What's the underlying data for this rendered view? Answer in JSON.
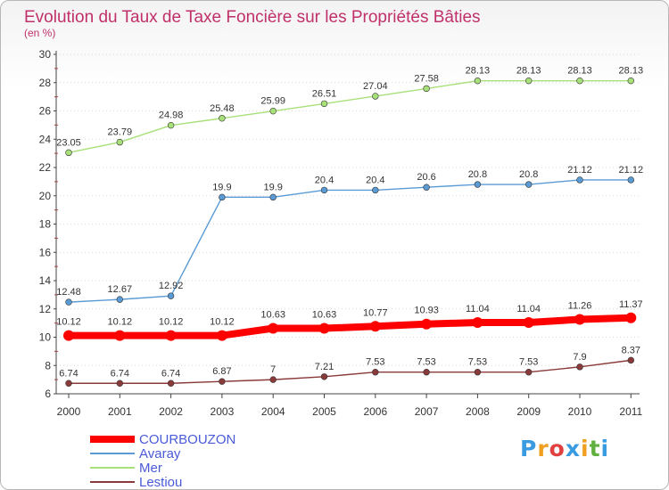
{
  "chart_data": {
    "type": "line",
    "title": "Evolution du Taux de Taxe Foncière sur les Propriétés Bâties",
    "ylabel": "(en %)",
    "xlabel": "",
    "ylim": [
      6,
      30
    ],
    "yticks": [
      6,
      8,
      10,
      12,
      14,
      16,
      18,
      20,
      22,
      24,
      26,
      28,
      30
    ],
    "categories": [
      "2000",
      "2001",
      "2002",
      "2003",
      "2004",
      "2005",
      "2006",
      "2007",
      "2008",
      "2009",
      "2010",
      "2011"
    ],
    "series": [
      {
        "name": "COURBOUZON",
        "color": "#ff0000",
        "values": [
          10.12,
          10.12,
          10.12,
          10.12,
          10.63,
          10.63,
          10.77,
          10.93,
          11.04,
          11.04,
          11.26,
          11.37
        ],
        "labels": [
          "10.12",
          "10.12",
          "10.12",
          "10.12",
          "10.63",
          "10.63",
          "10.77",
          "10.93",
          "11.04",
          "11.04",
          "11.26",
          "11.37"
        ]
      },
      {
        "name": "Avaray",
        "color": "#5b9bd5",
        "values": [
          12.48,
          12.67,
          12.92,
          19.9,
          19.9,
          20.4,
          20.4,
          20.6,
          20.8,
          20.8,
          21.12,
          21.12
        ],
        "labels": [
          "12.48",
          "12.67",
          "12.92",
          "19.9",
          "19.9",
          "20.4",
          "20.4",
          "20.6",
          "20.8",
          "20.8",
          "21.12",
          "21.12"
        ]
      },
      {
        "name": "Mer",
        "color": "#a8e07a",
        "values": [
          23.05,
          23.79,
          24.98,
          25.48,
          25.99,
          26.51,
          27.04,
          27.58,
          28.13,
          28.13,
          28.13,
          28.13
        ],
        "labels": [
          "23.05",
          "23.79",
          "24.98",
          "25.48",
          "25.99",
          "26.51",
          "27.04",
          "27.58",
          "28.13",
          "28.13",
          "28.13",
          "28.13"
        ]
      },
      {
        "name": "Lestiou",
        "color": "#8b3a3a",
        "values": [
          6.74,
          6.74,
          6.74,
          6.87,
          7.0,
          7.21,
          7.53,
          7.53,
          7.53,
          7.53,
          7.9,
          8.37
        ],
        "labels": [
          "6.74",
          "6.74",
          "6.74",
          "6.87",
          "7",
          "7.21",
          "7.53",
          "7.53",
          "7.53",
          "7.53",
          "7.9",
          "8.37"
        ]
      }
    ],
    "legend": "bottom-left"
  },
  "logo": {
    "letters": [
      "P",
      "r",
      "o",
      "x",
      "i",
      "t",
      "i"
    ],
    "colors": [
      "#3a9be0",
      "#f0a020",
      "#e04040",
      "#3a9be0",
      "#f0a020",
      "#60b040",
      "#3a9be0"
    ]
  }
}
